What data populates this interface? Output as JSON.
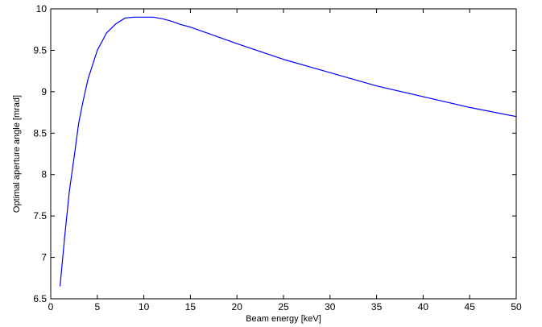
{
  "chart_data": {
    "type": "line",
    "title": "",
    "xlabel": "Beam energy [keV]",
    "ylabel": "Optimal aperture angle [mrad]",
    "xlim": [
      0,
      50
    ],
    "ylim": [
      6.5,
      10
    ],
    "xticks": [
      "0",
      "5",
      "10",
      "15",
      "20",
      "25",
      "30",
      "35",
      "40",
      "45",
      "50"
    ],
    "yticks": [
      "6.5",
      "7",
      "7.5",
      "8",
      "8.5",
      "9",
      "9.5",
      "10"
    ],
    "grid": false,
    "legend": "none",
    "line_color": "#0000ff",
    "series": [
      {
        "x": [
          1,
          1.5,
          2,
          2.5,
          3,
          3.5,
          4,
          5,
          6,
          7,
          8,
          9,
          10,
          11,
          12,
          13,
          14,
          15,
          17,
          20,
          25,
          30,
          35,
          40,
          45,
          50
        ],
        "y": [
          6.65,
          7.25,
          7.8,
          8.2,
          8.62,
          8.9,
          9.15,
          9.5,
          9.71,
          9.82,
          9.89,
          9.9,
          9.9,
          9.9,
          9.88,
          9.85,
          9.81,
          9.78,
          9.7,
          9.58,
          9.39,
          9.23,
          9.07,
          8.94,
          8.81,
          8.7
        ]
      }
    ]
  }
}
